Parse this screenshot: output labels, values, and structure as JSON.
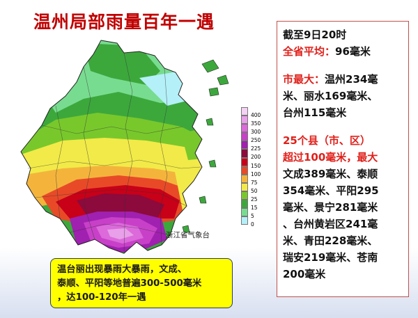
{
  "title": "温州局部雨量百年一遇",
  "map": {
    "credit": "浙江省气象台",
    "legend": {
      "labels": [
        "400",
        "350",
        "300",
        "250",
        "225",
        "200",
        "150",
        "100",
        "75",
        "50",
        "25",
        "15",
        "5",
        "0"
      ],
      "colors": [
        "#f4d2f4",
        "#e8a0e8",
        "#dc6ada",
        "#c840c8",
        "#a020b0",
        "#8c0a3c",
        "#c80018",
        "#e84a28",
        "#f4b43c",
        "#f2ea48",
        "#78c82c",
        "#3ca83c",
        "#78dc90",
        "#b4f0f8"
      ]
    }
  },
  "callout": {
    "lines": [
      "温台丽出现暴雨大暴雨，文成、",
      "泰顺、平阳等地普遍300-500毫米",
      "，达100-120年一遇"
    ]
  },
  "info": {
    "time": "截至9日20时",
    "avg_label": "全省平均：",
    "avg_value": "96毫米",
    "city_label": "市最大：",
    "city_lines": [
      "温州234毫",
      "米、丽水169毫米、",
      "台州115毫米"
    ],
    "county_lines_red": [
      "25个县（市、区）",
      "超过100毫米，最大"
    ],
    "county_lines": [
      "文成389毫米、泰顺",
      "354毫米、平阳295",
      "毫米、景宁281毫米",
      "、台州黄岩区241毫",
      "米、青田228毫米、",
      "瑞安219毫米、苍南",
      "200毫米"
    ]
  }
}
